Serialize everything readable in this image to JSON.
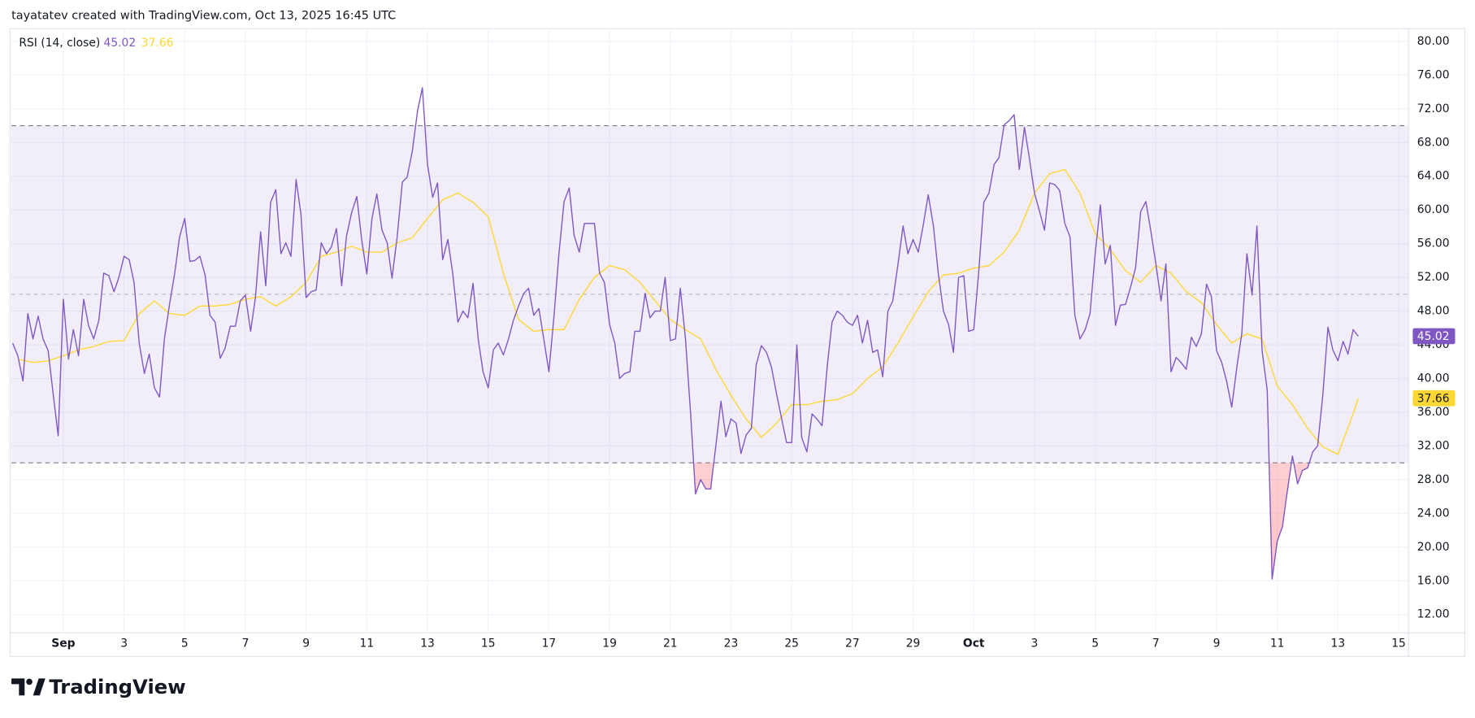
{
  "header": "tayatatev created with TradingView.com, Oct 13, 2025 16:45 UTC",
  "footer": "TradingView",
  "chart_data": {
    "type": "line",
    "grid": true,
    "y_axis_side": "right",
    "bands": {
      "upper": 70,
      "middle": 50,
      "lower": 30,
      "color": "#7e57c2"
    },
    "xlim": [
      -0.71,
      45.31
    ],
    "ylim": [
      9.88,
      81.56
    ],
    "xticks": [
      {
        "value": 1,
        "label": "Sep"
      },
      3,
      5,
      7,
      9,
      11,
      13,
      15,
      17,
      19,
      21,
      23,
      25,
      27,
      29,
      {
        "value": 31,
        "label": "Oct"
      },
      {
        "value": 33,
        "label": "3"
      },
      {
        "value": 35,
        "label": "5"
      },
      {
        "value": 37,
        "label": "7"
      },
      {
        "value": 39,
        "label": "9"
      },
      {
        "value": 41,
        "label": "11"
      },
      {
        "value": 43,
        "label": "13"
      },
      {
        "value": 45,
        "label": "15"
      }
    ],
    "yticks": [
      {
        "value": 12,
        "label": "12.00"
      },
      {
        "value": 16,
        "label": "16.00"
      },
      {
        "value": 20,
        "label": "20.00"
      },
      {
        "value": 24,
        "label": "24.00"
      },
      {
        "value": 28,
        "label": "28.00"
      },
      {
        "value": 32,
        "label": "32.00"
      },
      {
        "value": 36,
        "label": "36.00"
      },
      {
        "value": 40,
        "label": "40.00"
      },
      {
        "value": 44,
        "label": "44.00"
      },
      {
        "value": 48,
        "label": "48.00"
      },
      {
        "value": 52,
        "label": "52.00"
      },
      {
        "value": 56,
        "label": "56.00"
      },
      {
        "value": 60,
        "label": "60.00"
      },
      {
        "value": 64,
        "label": "64.00"
      },
      {
        "value": 68,
        "label": "68.00"
      },
      {
        "value": 72,
        "label": "72.00"
      },
      {
        "value": 76,
        "label": "76.00"
      },
      {
        "value": 80,
        "label": "80.00"
      }
    ],
    "series": [
      {
        "name": "RSI (14, close)",
        "color": "#7e57c2",
        "x": [
          -0.67,
          -0.5,
          -0.33,
          -0.17,
          0,
          0.17,
          0.33,
          0.5,
          0.67,
          0.83,
          1,
          1.17,
          1.33,
          1.5,
          1.67,
          1.83,
          2,
          2.17,
          2.33,
          2.5,
          2.67,
          2.83,
          3,
          3.17,
          3.33,
          3.5,
          3.67,
          3.83,
          4,
          4.17,
          4.33,
          4.5,
          4.67,
          4.83,
          5,
          5.17,
          5.33,
          5.5,
          5.67,
          5.83,
          6,
          6.17,
          6.33,
          6.5,
          6.67,
          6.83,
          7,
          7.17,
          7.33,
          7.5,
          7.67,
          7.83,
          8,
          8.17,
          8.33,
          8.5,
          8.67,
          8.83,
          9,
          9.17,
          9.33,
          9.5,
          9.67,
          9.83,
          10,
          10.17,
          10.33,
          10.5,
          10.67,
          10.83,
          11,
          11.17,
          11.33,
          11.5,
          11.67,
          11.83,
          12,
          12.17,
          12.33,
          12.5,
          12.67,
          12.83,
          13,
          13.17,
          13.33,
          13.5,
          13.67,
          13.83,
          14,
          14.17,
          14.33,
          14.5,
          14.67,
          14.83,
          15,
          15.17,
          15.33,
          15.5,
          15.67,
          15.83,
          16,
          16.17,
          16.33,
          16.5,
          16.67,
          16.83,
          17,
          17.17,
          17.33,
          17.5,
          17.67,
          17.83,
          18,
          18.17,
          18.33,
          18.5,
          18.67,
          18.83,
          19,
          19.17,
          19.33,
          19.5,
          19.67,
          19.83,
          20,
          20.17,
          20.33,
          20.5,
          20.67,
          20.83,
          21,
          21.17,
          21.33,
          21.5,
          21.67,
          21.83,
          22,
          22.17,
          22.33,
          22.5,
          22.67,
          22.83,
          23,
          23.17,
          23.33,
          23.5,
          23.67,
          23.83,
          24,
          24.17,
          24.33,
          24.5,
          24.67,
          24.83,
          25,
          25.17,
          25.33,
          25.5,
          25.67,
          25.83,
          26,
          26.17,
          26.33,
          26.5,
          26.67,
          26.83,
          27,
          27.17,
          27.33,
          27.5,
          27.67,
          27.83,
          28,
          28.17,
          28.33,
          28.5,
          28.67,
          28.83,
          29,
          29.17,
          29.33,
          29.5,
          29.67,
          29.83,
          30,
          30.17,
          30.33,
          30.5,
          30.67,
          30.83,
          31,
          31.17,
          31.33,
          31.5,
          31.67,
          31.83,
          32,
          32.17,
          32.33,
          32.5,
          32.67,
          32.83,
          33,
          33.17,
          33.33,
          33.5,
          33.67,
          33.83,
          34,
          34.17,
          34.33,
          34.5,
          34.67,
          34.83,
          35,
          35.17,
          35.33,
          35.5,
          35.67,
          35.83,
          36,
          36.17,
          36.33,
          36.5,
          36.67,
          36.83,
          37,
          37.17,
          37.33,
          37.5,
          37.67,
          37.83,
          38,
          38.17,
          38.33,
          38.5,
          38.67,
          38.83,
          39,
          39.17,
          39.33,
          39.5,
          39.67,
          39.83,
          40,
          40.17,
          40.33,
          40.5,
          40.67,
          40.83,
          41,
          41.17,
          41.33,
          41.5,
          41.67,
          41.83,
          42,
          42.17,
          42.33,
          42.5,
          42.67,
          42.83,
          43,
          43.17,
          43.33,
          43.5,
          43.67
        ],
        "values": [
          44.2,
          42.7,
          39.7,
          47.7,
          44.7,
          47.4,
          44.7,
          43.3,
          38.0,
          33.2,
          49.4,
          42.3,
          45.8,
          42.7,
          49.4,
          46.3,
          44.7,
          46.9,
          52.5,
          52.2,
          50.3,
          52.0,
          54.5,
          54.1,
          51.4,
          44.2,
          40.6,
          42.9,
          38.9,
          37.8,
          44.7,
          48.8,
          52.5,
          56.8,
          59.0,
          53.9,
          54.0,
          54.5,
          52.3,
          47.5,
          46.7,
          42.4,
          43.6,
          46.2,
          46.2,
          49.2,
          49.9,
          45.6,
          49.6,
          57.4,
          51.0,
          60.9,
          62.4,
          54.8,
          56.1,
          54.5,
          63.6,
          59.5,
          49.6,
          50.3,
          50.5,
          56.1,
          54.8,
          55.6,
          57.8,
          51.0,
          56.9,
          59.7,
          61.6,
          56.5,
          52.4,
          59.0,
          61.9,
          57.6,
          56.1,
          51.9,
          56.8,
          63.3,
          63.9,
          67.0,
          71.7,
          74.5,
          65.4,
          61.5,
          63.2,
          54.1,
          56.5,
          52.5,
          46.7,
          48.0,
          47.2,
          51.3,
          44.7,
          40.8,
          38.9,
          43.4,
          44.2,
          42.8,
          44.7,
          46.9,
          48.6,
          50.1,
          50.7,
          47.5,
          48.3,
          44.7,
          40.8,
          47.5,
          54.8,
          61.0,
          62.6,
          57.0,
          55.0,
          58.4,
          58.4,
          58.4,
          52.5,
          51.4,
          46.4,
          44.2,
          40.0,
          40.6,
          40.8,
          45.6,
          45.6,
          50.1,
          47.2,
          48.0,
          48.0,
          52.0,
          44.5,
          44.7,
          50.7,
          44.7,
          35.8,
          26.3,
          28.0,
          26.9,
          26.9,
          32.0,
          37.3,
          33.1,
          35.2,
          34.7,
          31.1,
          33.3,
          34.1,
          41.6,
          43.9,
          43.1,
          41.4,
          38.2,
          35.2,
          32.4,
          32.4,
          44.0,
          33.0,
          31.3,
          35.8,
          35.2,
          34.4,
          41.4,
          46.7,
          48.0,
          47.5,
          46.7,
          46.3,
          47.5,
          44.2,
          46.9,
          43.1,
          43.4,
          40.2,
          48.0,
          49.2,
          53.5,
          58.1,
          54.8,
          56.5,
          55.0,
          58.1,
          61.8,
          58.1,
          52.5,
          48.0,
          46.4,
          43.1,
          52.0,
          52.2,
          45.6,
          45.8,
          53.0,
          60.9,
          62.0,
          65.4,
          66.2,
          70.1,
          70.6,
          71.3,
          64.8,
          69.8,
          66.2,
          62.0,
          59.8,
          57.6,
          63.2,
          63.0,
          62.3,
          58.4,
          56.8,
          47.5,
          44.7,
          45.8,
          47.7,
          54.8,
          60.6,
          53.6,
          55.8,
          46.3,
          48.7,
          48.8,
          50.9,
          53.1,
          59.8,
          61.0,
          57.6,
          53.6,
          49.2,
          53.6,
          40.8,
          42.5,
          41.9,
          41.1,
          44.9,
          43.8,
          45.3,
          51.2,
          49.7,
          43.3,
          41.9,
          39.7,
          36.6,
          41.4,
          45.3,
          54.8,
          49.9,
          58.1,
          43.3,
          38.6,
          16.2,
          20.7,
          22.4,
          26.6,
          30.8,
          27.5,
          29.1,
          29.4,
          31.3,
          32.0,
          38.0,
          46.1,
          43.4,
          42.1,
          44.4,
          42.9,
          45.8,
          45.02
        ]
      },
      {
        "color": "#fdd835",
        "x": [
          -0.5,
          0,
          0.5,
          1,
          1.5,
          2,
          2.5,
          3,
          3.5,
          4,
          4.5,
          5,
          5.5,
          6,
          6.5,
          7,
          7.5,
          8,
          8.5,
          9,
          9.5,
          10,
          10.5,
          11,
          11.5,
          12,
          12.5,
          13,
          13.5,
          14,
          14.5,
          15,
          15.5,
          16,
          16.5,
          17,
          17.5,
          18,
          18.5,
          19,
          19.5,
          20,
          20.5,
          21,
          21.5,
          22,
          22.5,
          23,
          23.5,
          24,
          24.5,
          25,
          25.5,
          26,
          26.5,
          27,
          27.5,
          28,
          28.5,
          29,
          29.5,
          30,
          30.5,
          31,
          31.5,
          32,
          32.5,
          33,
          33.5,
          34,
          34.5,
          35,
          35.5,
          36,
          36.5,
          37,
          37.5,
          38,
          38.5,
          39,
          39.5,
          40,
          40.5,
          41,
          41.5,
          42,
          42.5,
          43,
          43.5,
          43.67
        ],
        "values": [
          42.3,
          41.9,
          42.1,
          42.7,
          43.4,
          43.8,
          44.4,
          44.5,
          47.7,
          49.2,
          47.7,
          47.5,
          48.6,
          48.6,
          48.8,
          49.4,
          49.7,
          48.6,
          49.7,
          51.4,
          54.5,
          55.0,
          55.7,
          55.0,
          55.0,
          56.1,
          56.7,
          59.0,
          61.2,
          62.0,
          60.9,
          59.2,
          52.5,
          47.0,
          45.6,
          45.8,
          45.8,
          49.4,
          52.0,
          53.4,
          52.9,
          51.4,
          49.2,
          47.0,
          45.8,
          44.7,
          41.1,
          38.0,
          35.2,
          33.0,
          34.7,
          36.9,
          36.9,
          37.3,
          37.5,
          38.2,
          40.0,
          41.4,
          44.2,
          47.3,
          50.3,
          52.3,
          52.5,
          53.1,
          53.4,
          55.0,
          57.6,
          62.0,
          64.3,
          64.8,
          62.0,
          57.2,
          55.3,
          52.8,
          51.4,
          53.4,
          52.5,
          50.3,
          49.0,
          46.4,
          44.2,
          45.3,
          44.7,
          39.1,
          36.9,
          34.1,
          31.9,
          31.0,
          35.8,
          37.66
        ]
      }
    ]
  }
}
